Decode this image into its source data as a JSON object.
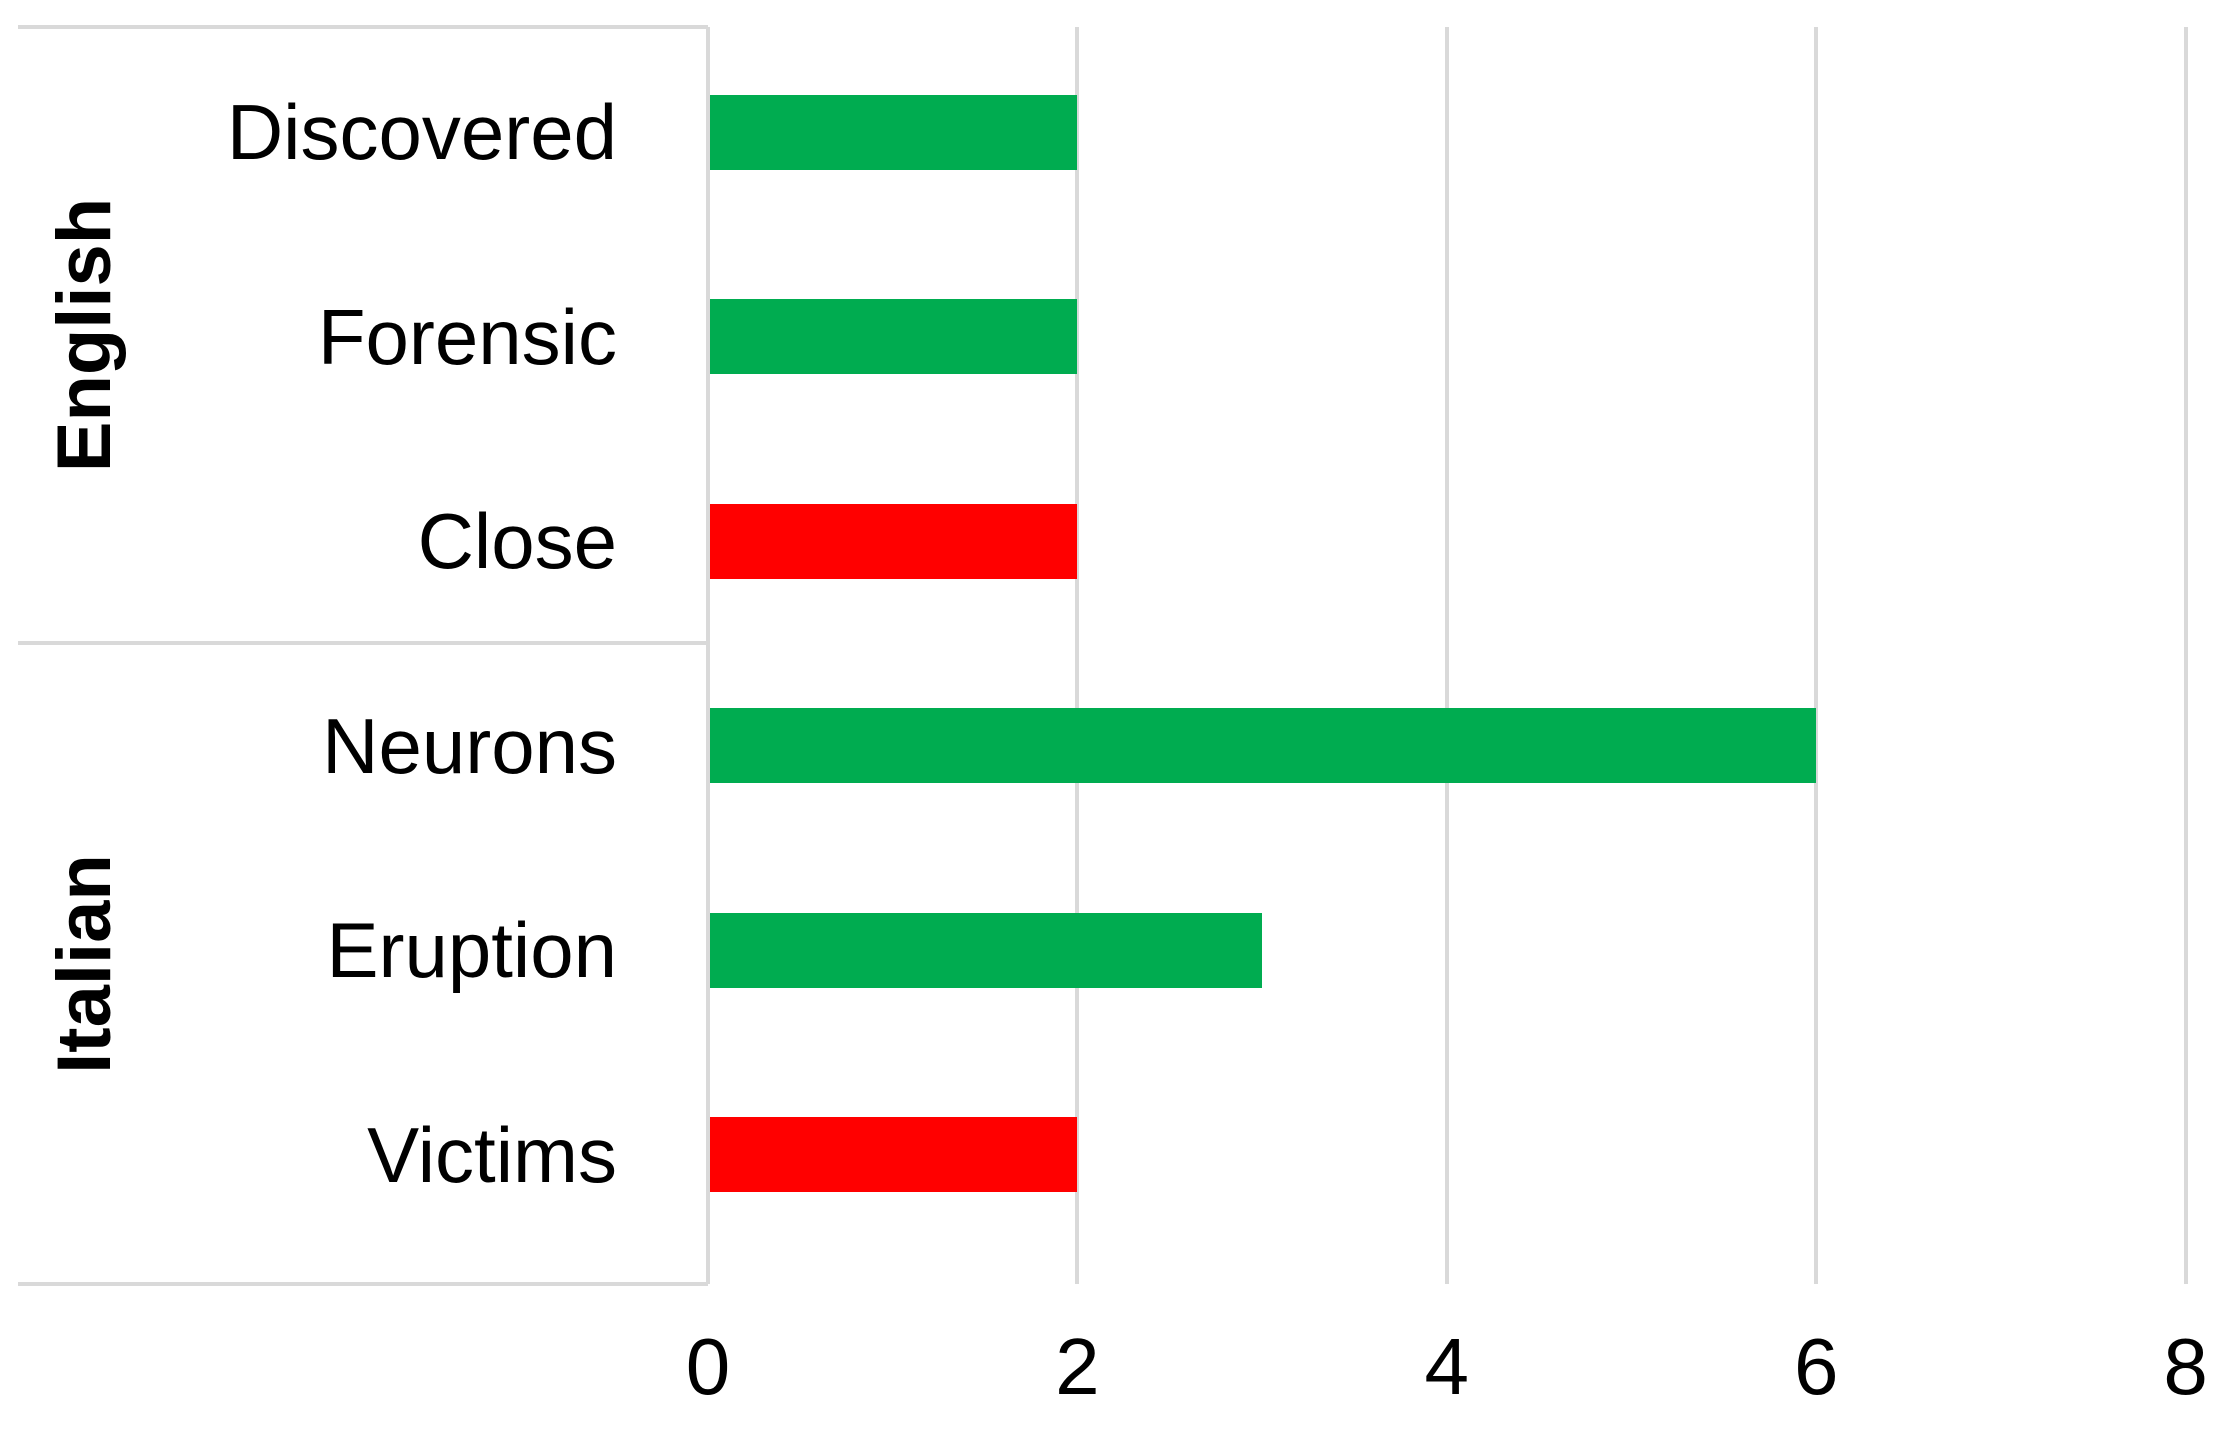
{
  "chart_data": {
    "type": "bar",
    "orientation": "horizontal",
    "groups": [
      {
        "label": "English",
        "items": [
          {
            "label": "Discovered",
            "value": 2,
            "color": "green"
          },
          {
            "label": "Forensic",
            "value": 2,
            "color": "green"
          },
          {
            "label": "Close",
            "value": 2,
            "color": "red"
          }
        ]
      },
      {
        "label": "Italian",
        "items": [
          {
            "label": "Neurons",
            "value": 6,
            "color": "green"
          },
          {
            "label": "Eruption",
            "value": 3,
            "color": "green"
          },
          {
            "label": "Victims",
            "value": 2,
            "color": "red"
          }
        ]
      }
    ],
    "x_axis": {
      "min": 0,
      "max": 8,
      "ticks": [
        0,
        2,
        4,
        6,
        8
      ]
    },
    "grid": true,
    "legend": false,
    "colors": {
      "green": "#00AC50",
      "red": "#FF0000",
      "gridline": "#D9D9D9",
      "text": "#000000"
    }
  }
}
